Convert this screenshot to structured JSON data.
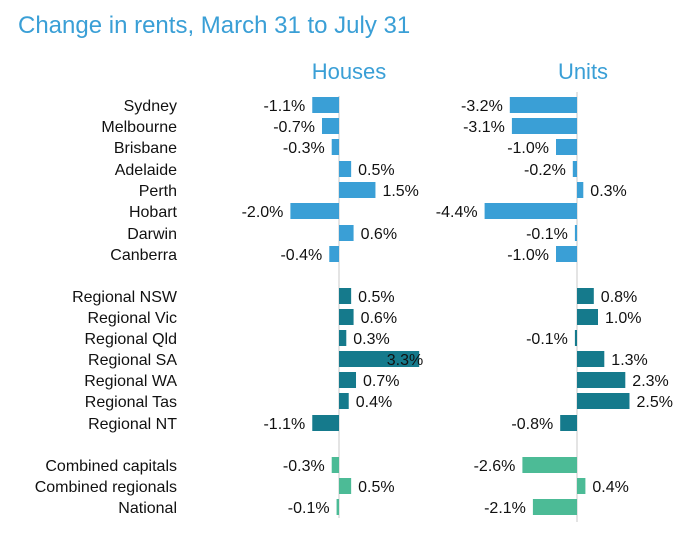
{
  "title": "Change in rents, March 31 to July 31",
  "colors": {
    "capital": "#3a9fd6",
    "regional": "#157a8c",
    "aggregate": "#4cbb96",
    "title": "#3a9fd6",
    "axis": "#c8c8c8"
  },
  "chart_data": {
    "type": "bar",
    "orientation": "horizontal",
    "title": "Change in rents, March 31 to July 31",
    "categories": [
      "Sydney",
      "Melbourne",
      "Brisbane",
      "Adelaide",
      "Perth",
      "Hobart",
      "Darwin",
      "Canberra",
      "Regional NSW",
      "Regional Vic",
      "Regional Qld",
      "Regional SA",
      "Regional WA",
      "Regional Tas",
      "Regional NT",
      "Combined capitals",
      "Combined regionals",
      "National"
    ],
    "groups": [
      {
        "type": "capital",
        "count": 8
      },
      {
        "type": "regional",
        "count": 7
      },
      {
        "type": "aggregate",
        "count": 3
      }
    ],
    "unit": "%",
    "series": [
      {
        "name": "Houses",
        "values": [
          -1.1,
          -0.7,
          -0.3,
          0.5,
          1.5,
          -2.0,
          0.6,
          -0.4,
          0.5,
          0.6,
          0.3,
          3.3,
          0.7,
          0.4,
          -1.1,
          -0.3,
          0.5,
          -0.1
        ],
        "labels": [
          "-1.1%",
          "-0.7%",
          "-0.3%",
          "0.5%",
          "1.5%",
          "-2.0%",
          "0.6%",
          "-0.4%",
          "0.5%",
          "0.6%",
          "0.3%",
          "3.3%",
          "0.7%",
          "0.4%",
          "-1.1%",
          "-0.3%",
          "0.5%",
          "-0.1%"
        ]
      },
      {
        "name": "Units",
        "values": [
          -3.2,
          -3.1,
          -1.0,
          -0.2,
          0.3,
          -4.4,
          -0.1,
          -1.0,
          0.8,
          1.0,
          -0.1,
          1.3,
          2.3,
          2.5,
          -0.8,
          -2.6,
          0.4,
          -2.1
        ],
        "labels": [
          "-3.2%",
          "-3.1%",
          "-1.0%",
          "-0.2%",
          "0.3%",
          "-4.4%",
          "-0.1%",
          "-1.0%",
          "0.8%",
          "1.0%",
          "-0.1%",
          "1.3%",
          "2.3%",
          "2.5%",
          "-0.8%",
          "-2.6%",
          "0.4%",
          "-2.1%"
        ]
      }
    ],
    "grid": false,
    "legend": "none"
  }
}
